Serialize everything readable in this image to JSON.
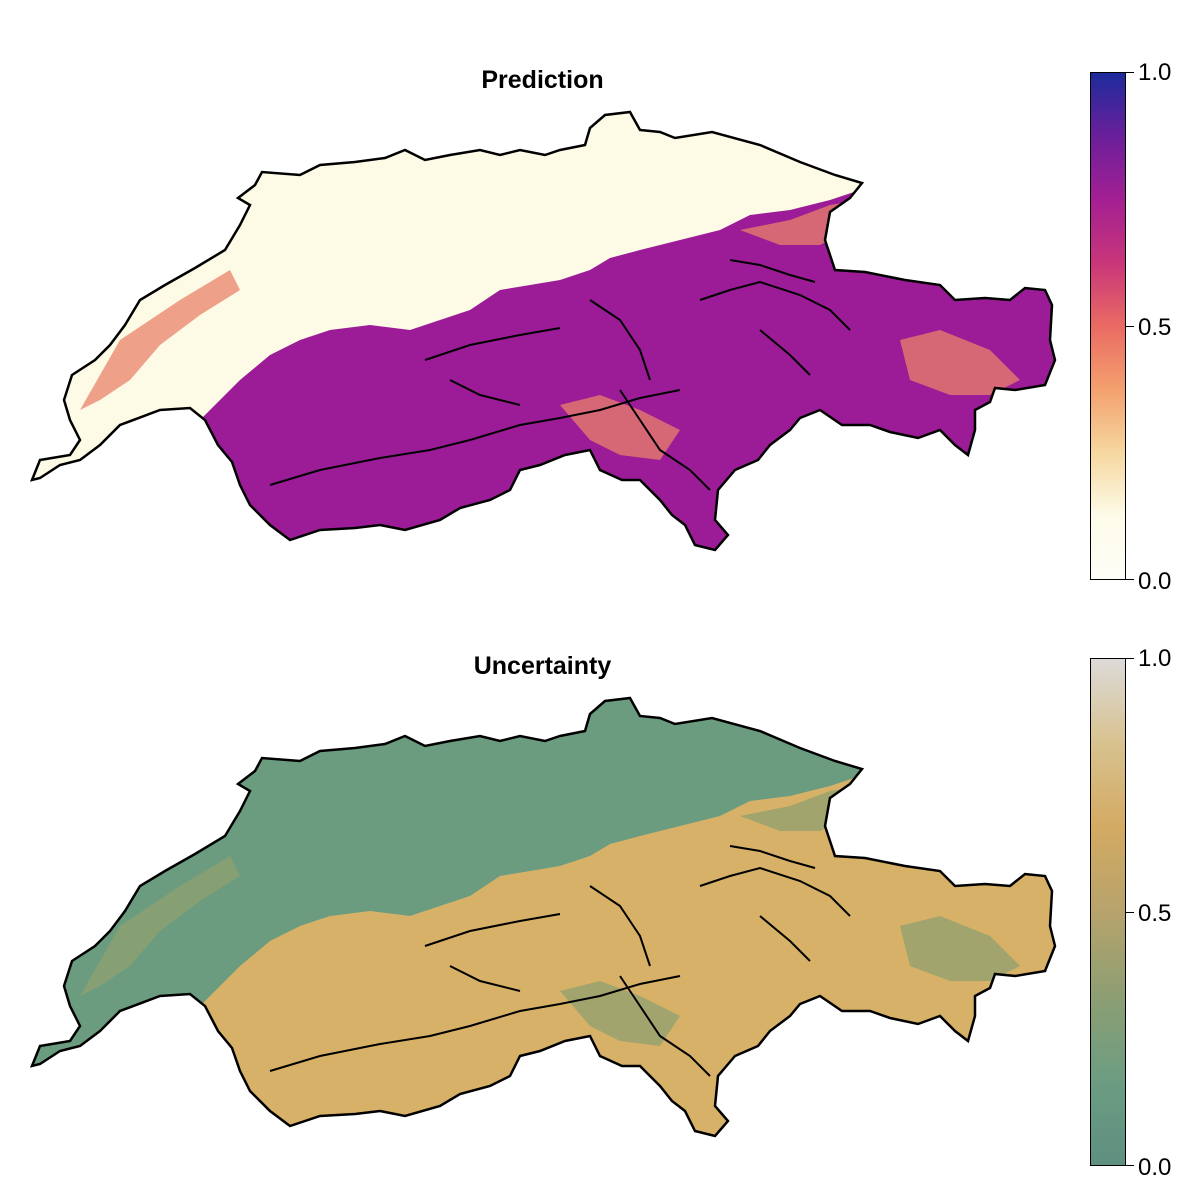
{
  "panels": [
    {
      "title": "Prediction",
      "colorbar": {
        "ticks": [
          "1.0",
          "0.5",
          "0.0"
        ],
        "colors": [
          "#1d2b9c",
          "#6a1f9a",
          "#a41f93",
          "#c8367a",
          "#ea6a63",
          "#f3a06e",
          "#f6d79f",
          "#fdfbe8",
          "#fffef8"
        ]
      },
      "map_colors": {
        "low": "#fdfae6",
        "high": "#9c1c98",
        "mid": "#e9826a",
        "border": "#000000"
      }
    },
    {
      "title": "Uncertainty",
      "colorbar": {
        "ticks": [
          "1.0",
          "0.5",
          "0.0"
        ],
        "colors": [
          "#dcdad8",
          "#d8c28f",
          "#d3aa62",
          "#b7a36c",
          "#8d9e73",
          "#6c9d82",
          "#5f8f80"
        ]
      },
      "map_colors": {
        "low": "#6b9c80",
        "high": "#d7b167",
        "mid": "#8fa06f",
        "border": "#000000"
      }
    }
  ]
}
